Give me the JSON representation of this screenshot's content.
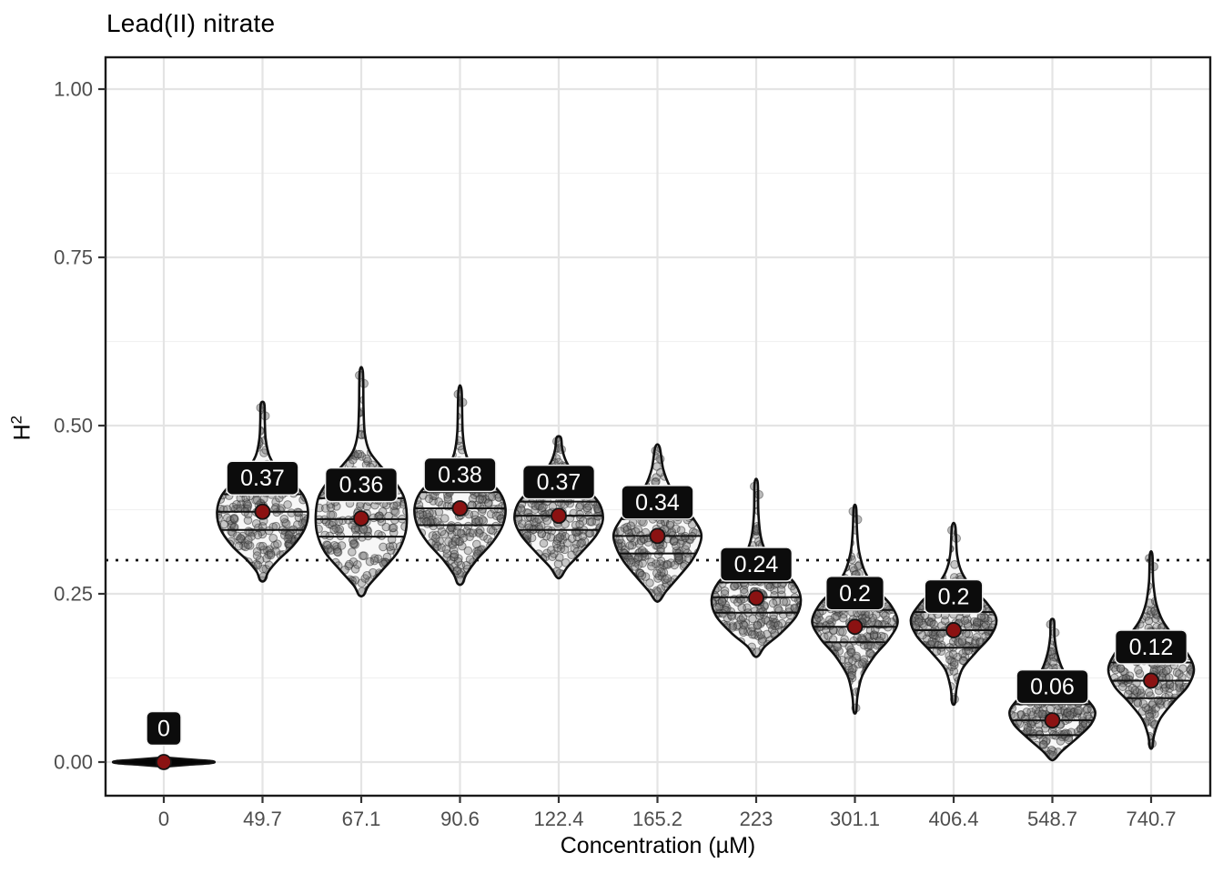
{
  "title": "Lead(II) nitrate",
  "chart_data": {
    "type": "violin",
    "title": "Lead(II) nitrate",
    "xlabel": "Concentration (µM)",
    "ylabel": "H²",
    "ylabel_base": "H",
    "ylabel_sup": "2",
    "ylim": [
      -0.05,
      1.05
    ],
    "grid": "major-and-minor",
    "legend": "none",
    "yticks": [
      {
        "value": 0.0,
        "label": "0.00"
      },
      {
        "value": 0.25,
        "label": "0.25"
      },
      {
        "value": 0.5,
        "label": "0.50"
      },
      {
        "value": 0.75,
        "label": "0.75"
      },
      {
        "value": 1.0,
        "label": "1.00"
      }
    ],
    "yticks_minor": [
      0.125,
      0.375,
      0.625,
      0.875
    ],
    "reference_line": {
      "y": 0.3,
      "style": "dotted",
      "color": "#141414"
    },
    "categories": [
      "0",
      "49.7",
      "67.1",
      "90.6",
      "122.4",
      "165.2",
      "223",
      "301.1",
      "406.4",
      "548.7",
      "740.7"
    ],
    "colors": {
      "mean_point": "#8B1212",
      "mean_point_stroke": "#151515",
      "label_box_fill": "#0c0c0c",
      "label_text": "#ffffff",
      "violin_stroke": "#111111",
      "violin_fill": "#f7f7f7",
      "jitter_point": "#707070",
      "zero_point": "#050505",
      "grid_major": "#e4e4e4",
      "grid_minor": "#f1f1f1",
      "axis_text": "#4d4d4d",
      "panel_border": "#1a1a1a"
    },
    "violins": [
      {
        "category": "0",
        "label": "0",
        "mean": 0.0,
        "quartiles": [
          -0.001,
          0.0,
          0.001
        ],
        "range": [
          -0.007,
          0.007
        ],
        "style": "black",
        "n": 260,
        "relwidth": 1.12,
        "profile": [
          [
            -0.007,
            0.03
          ],
          [
            -0.0045,
            0.45
          ],
          [
            -0.002,
            0.9
          ],
          [
            0,
            1.0
          ],
          [
            0.002,
            0.9
          ],
          [
            0.0045,
            0.45
          ],
          [
            0.007,
            0.03
          ]
        ]
      },
      {
        "category": "49.7",
        "label": "0.37",
        "mean": 0.372,
        "quartiles": [
          0.345,
          0.372,
          0.398
        ],
        "range": [
          0.27,
          0.532
        ],
        "style": "gray",
        "n": 230,
        "relwidth": 1.0,
        "profile": [
          [
            0.27,
            0.05
          ],
          [
            0.283,
            0.13
          ],
          [
            0.3,
            0.34
          ],
          [
            0.322,
            0.68
          ],
          [
            0.347,
            0.93
          ],
          [
            0.372,
            1.0
          ],
          [
            0.396,
            0.9
          ],
          [
            0.418,
            0.62
          ],
          [
            0.437,
            0.32
          ],
          [
            0.455,
            0.15
          ],
          [
            0.48,
            0.07
          ],
          [
            0.505,
            0.05
          ],
          [
            0.532,
            0.04
          ]
        ]
      },
      {
        "category": "67.1",
        "label": "0.36",
        "mean": 0.362,
        "quartiles": [
          0.335,
          0.361,
          0.392
        ],
        "range": [
          0.248,
          0.58
        ],
        "style": "gray",
        "n": 230,
        "relwidth": 1.0,
        "profile": [
          [
            0.248,
            0.05
          ],
          [
            0.262,
            0.16
          ],
          [
            0.285,
            0.46
          ],
          [
            0.312,
            0.8
          ],
          [
            0.34,
            0.97
          ],
          [
            0.368,
            1.0
          ],
          [
            0.395,
            0.93
          ],
          [
            0.42,
            0.7
          ],
          [
            0.442,
            0.4
          ],
          [
            0.462,
            0.18
          ],
          [
            0.487,
            0.08
          ],
          [
            0.525,
            0.05
          ],
          [
            0.58,
            0.035
          ]
        ]
      },
      {
        "category": "90.6",
        "label": "0.38",
        "mean": 0.377,
        "quartiles": [
          0.352,
          0.377,
          0.401
        ],
        "range": [
          0.265,
          0.552
        ],
        "style": "gray",
        "n": 230,
        "relwidth": 1.0,
        "profile": [
          [
            0.265,
            0.05
          ],
          [
            0.279,
            0.14
          ],
          [
            0.3,
            0.36
          ],
          [
            0.327,
            0.72
          ],
          [
            0.352,
            0.94
          ],
          [
            0.377,
            1.0
          ],
          [
            0.4,
            0.88
          ],
          [
            0.421,
            0.58
          ],
          [
            0.44,
            0.28
          ],
          [
            0.458,
            0.13
          ],
          [
            0.49,
            0.06
          ],
          [
            0.552,
            0.035
          ]
        ]
      },
      {
        "category": "122.4",
        "label": "0.37",
        "mean": 0.366,
        "quartiles": [
          0.345,
          0.366,
          0.387
        ],
        "range": [
          0.275,
          0.482
        ],
        "style": "gray",
        "n": 220,
        "relwidth": 0.97,
        "profile": [
          [
            0.275,
            0.05
          ],
          [
            0.29,
            0.2
          ],
          [
            0.312,
            0.52
          ],
          [
            0.337,
            0.85
          ],
          [
            0.36,
            1.0
          ],
          [
            0.383,
            0.93
          ],
          [
            0.406,
            0.65
          ],
          [
            0.428,
            0.35
          ],
          [
            0.448,
            0.16
          ],
          [
            0.465,
            0.08
          ],
          [
            0.482,
            0.05
          ]
        ]
      },
      {
        "category": "165.2",
        "label": "0.34",
        "mean": 0.336,
        "quartiles": [
          0.31,
          0.336,
          0.361
        ],
        "range": [
          0.24,
          0.468
        ],
        "style": "gray",
        "n": 220,
        "relwidth": 0.96,
        "profile": [
          [
            0.24,
            0.05
          ],
          [
            0.254,
            0.2
          ],
          [
            0.275,
            0.48
          ],
          [
            0.298,
            0.77
          ],
          [
            0.32,
            0.95
          ],
          [
            0.34,
            1.0
          ],
          [
            0.362,
            0.82
          ],
          [
            0.386,
            0.52
          ],
          [
            0.41,
            0.28
          ],
          [
            0.436,
            0.13
          ],
          [
            0.468,
            0.05
          ]
        ]
      },
      {
        "category": "223",
        "label": "0.24",
        "mean": 0.244,
        "quartiles": [
          0.222,
          0.245,
          0.267
        ],
        "range": [
          0.158,
          0.415
        ],
        "style": "gray",
        "n": 230,
        "relwidth": 0.98,
        "profile": [
          [
            0.158,
            0.05
          ],
          [
            0.172,
            0.2
          ],
          [
            0.192,
            0.56
          ],
          [
            0.217,
            0.9
          ],
          [
            0.242,
            1.0
          ],
          [
            0.266,
            0.86
          ],
          [
            0.288,
            0.52
          ],
          [
            0.31,
            0.24
          ],
          [
            0.333,
            0.11
          ],
          [
            0.368,
            0.05
          ],
          [
            0.415,
            0.035
          ]
        ]
      },
      {
        "category": "301.1",
        "label": "0.2",
        "mean": 0.201,
        "quartiles": [
          0.178,
          0.201,
          0.226
        ],
        "range": [
          0.075,
          0.378
        ],
        "style": "gray",
        "n": 230,
        "relwidth": 0.94,
        "profile": [
          [
            0.075,
            0.03
          ],
          [
            0.098,
            0.06
          ],
          [
            0.128,
            0.17
          ],
          [
            0.158,
            0.46
          ],
          [
            0.183,
            0.8
          ],
          [
            0.208,
            1.0
          ],
          [
            0.233,
            0.84
          ],
          [
            0.257,
            0.5
          ],
          [
            0.282,
            0.24
          ],
          [
            0.312,
            0.1
          ],
          [
            0.343,
            0.05
          ],
          [
            0.378,
            0.03
          ]
        ]
      },
      {
        "category": "406.4",
        "label": "0.2",
        "mean": 0.196,
        "quartiles": [
          0.17,
          0.196,
          0.223
        ],
        "range": [
          0.088,
          0.35
        ],
        "style": "gray",
        "n": 230,
        "relwidth": 0.94,
        "profile": [
          [
            0.088,
            0.035
          ],
          [
            0.11,
            0.07
          ],
          [
            0.138,
            0.2
          ],
          [
            0.163,
            0.52
          ],
          [
            0.188,
            0.87
          ],
          [
            0.212,
            1.0
          ],
          [
            0.236,
            0.78
          ],
          [
            0.258,
            0.44
          ],
          [
            0.282,
            0.19
          ],
          [
            0.308,
            0.08
          ],
          [
            0.35,
            0.04
          ]
        ]
      },
      {
        "category": "548.7",
        "label": "0.06",
        "mean": 0.062,
        "quartiles": [
          0.04,
          0.062,
          0.086
        ],
        "range": [
          0.004,
          0.21
        ],
        "style": "gray",
        "n": 220,
        "relwidth": 0.94,
        "profile": [
          [
            0.004,
            0.05
          ],
          [
            0.016,
            0.22
          ],
          [
            0.036,
            0.58
          ],
          [
            0.056,
            0.9
          ],
          [
            0.075,
            1.0
          ],
          [
            0.094,
            0.8
          ],
          [
            0.113,
            0.5
          ],
          [
            0.138,
            0.24
          ],
          [
            0.162,
            0.11
          ],
          [
            0.187,
            0.05
          ],
          [
            0.21,
            0.04
          ]
        ]
      },
      {
        "category": "740.7",
        "label": "0.12",
        "mean": 0.121,
        "quartiles": [
          0.095,
          0.121,
          0.148
        ],
        "range": [
          0.022,
          0.308
        ],
        "style": "gray",
        "n": 230,
        "relwidth": 0.94,
        "profile": [
          [
            0.022,
            0.03
          ],
          [
            0.04,
            0.07
          ],
          [
            0.064,
            0.21
          ],
          [
            0.089,
            0.52
          ],
          [
            0.113,
            0.86
          ],
          [
            0.138,
            1.0
          ],
          [
            0.162,
            0.84
          ],
          [
            0.186,
            0.54
          ],
          [
            0.21,
            0.27
          ],
          [
            0.236,
            0.12
          ],
          [
            0.268,
            0.05
          ],
          [
            0.308,
            0.03
          ]
        ]
      }
    ]
  }
}
